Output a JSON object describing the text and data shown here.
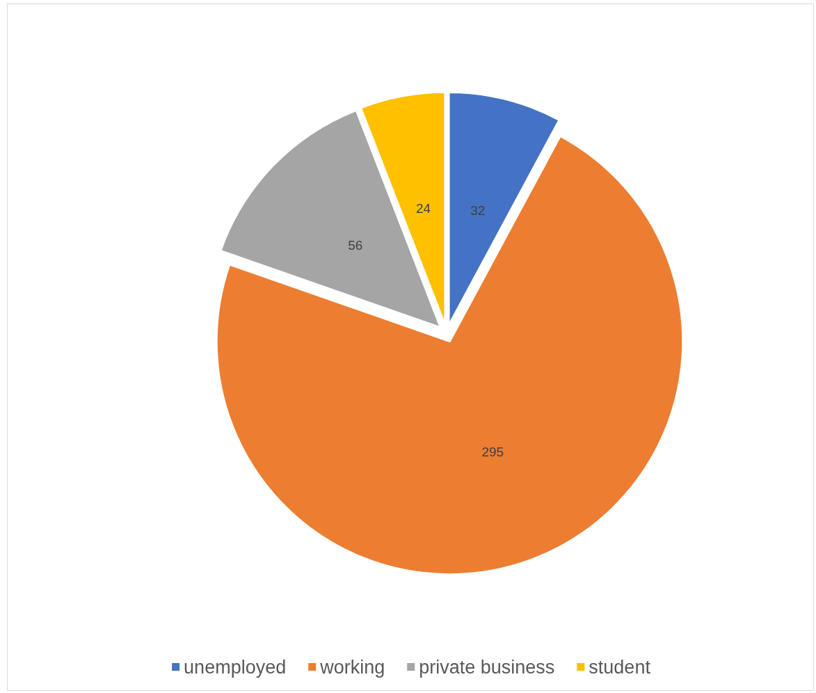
{
  "chart_data": {
    "type": "pie",
    "categories": [
      "unemployed",
      "working",
      "private business",
      "student"
    ],
    "values": [
      32,
      295,
      56,
      24
    ],
    "colors": [
      "#4472c4",
      "#ed7d31",
      "#a5a5a5",
      "#ffc000"
    ],
    "data_labels": true,
    "legend": "bottom"
  }
}
